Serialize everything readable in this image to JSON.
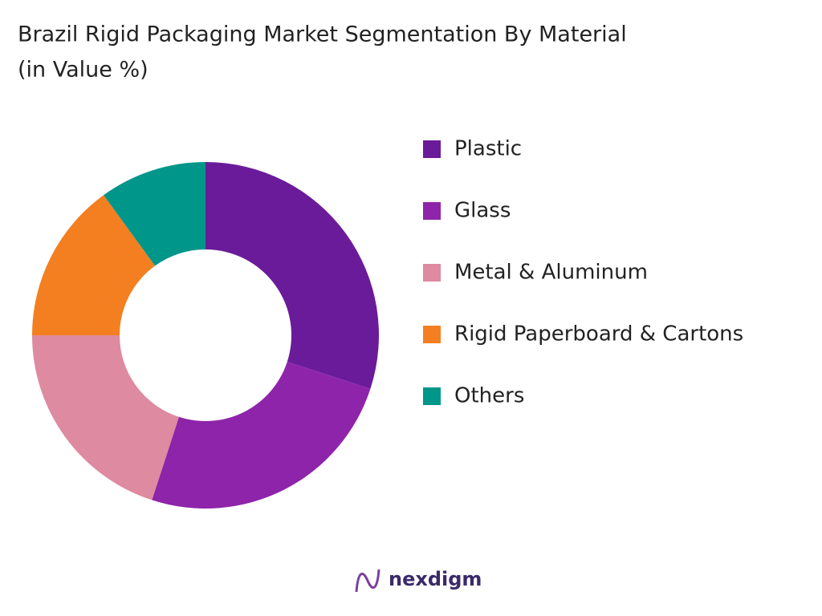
{
  "chart_data": {
    "type": "donut",
    "title": "Brazil Rigid Packaging Market Segmentation By Material",
    "subtitle": "(in Value %)",
    "categories": [
      "Plastic",
      "Glass",
      "Metal & Aluminum",
      "Rigid Paperboard & Cartons",
      "Others"
    ],
    "values": [
      30,
      25,
      20,
      15,
      10
    ],
    "colors": [
      "#6a1b9a",
      "#8e24aa",
      "#de8aa0",
      "#f47f20",
      "#00968a"
    ],
    "legend": "right"
  },
  "footer": {
    "brand": "nexdigm"
  }
}
